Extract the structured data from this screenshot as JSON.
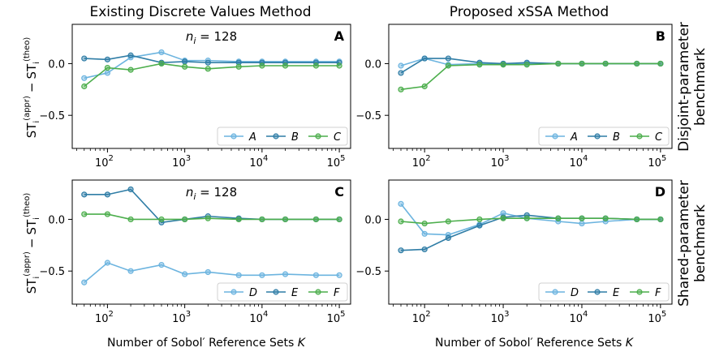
{
  "figure": {
    "col_titles": [
      "Existing Discrete Values Method",
      "Proposed xSSA Method"
    ],
    "row_labels": [
      [
        "Disjoint-parameter",
        "benchmark"
      ],
      [
        "Shared-parameter",
        "benchmark"
      ]
    ],
    "xlabel_prefix": "Number of Sobol′ Reference Sets ",
    "xlabel_var": "K",
    "ylabel": {
      "prefix": "ST",
      "sub": "i",
      "sup_appr": "(appr)",
      "minus": "−",
      "sup_theo": "(theo)"
    }
  },
  "chart_data": [
    {
      "type": "line",
      "panel": "A",
      "annotation": "n_i = 128",
      "x": [
        50,
        100,
        200,
        500,
        1000,
        2000,
        5000,
        10000,
        20000,
        50000,
        100000
      ],
      "xscale": "log",
      "xlim": [
        35,
        140000
      ],
      "ylim": [
        -0.82,
        0.38
      ],
      "yticks": [
        0.0,
        -0.5
      ],
      "xticks": [
        100,
        1000,
        10000,
        100000
      ],
      "legend_position": "lower-right",
      "series": [
        {
          "name": "A",
          "color": "#6cb4df",
          "values": [
            -0.14,
            -0.09,
            0.06,
            0.11,
            0.03,
            0.03,
            0.02,
            0.02,
            0.02,
            0.02,
            0.02
          ]
        },
        {
          "name": "B",
          "color": "#2f7da6",
          "values": [
            0.05,
            0.04,
            0.08,
            0.01,
            0.02,
            0.01,
            0.01,
            0.01,
            0.01,
            0.01,
            0.01
          ]
        },
        {
          "name": "C",
          "color": "#4cae4c",
          "values": [
            -0.22,
            -0.04,
            -0.06,
            0.0,
            -0.03,
            -0.05,
            -0.03,
            -0.02,
            -0.02,
            -0.02,
            -0.02
          ]
        }
      ]
    },
    {
      "type": "line",
      "panel": "B",
      "annotation": "",
      "x": [
        50,
        100,
        200,
        500,
        1000,
        2000,
        5000,
        10000,
        20000,
        50000,
        100000
      ],
      "xscale": "log",
      "xlim": [
        35,
        140000
      ],
      "ylim": [
        -0.82,
        0.38
      ],
      "yticks": [
        0.0,
        -0.5
      ],
      "xticks": [
        100,
        1000,
        10000,
        100000
      ],
      "legend_position": "lower-right",
      "series": [
        {
          "name": "A",
          "color": "#6cb4df",
          "values": [
            -0.02,
            0.05,
            -0.01,
            0.0,
            0.0,
            0.0,
            0.0,
            0.0,
            0.0,
            0.0,
            0.0
          ]
        },
        {
          "name": "B",
          "color": "#2f7da6",
          "values": [
            -0.09,
            0.05,
            0.05,
            0.01,
            0.0,
            0.01,
            0.0,
            0.0,
            0.0,
            0.0,
            0.0
          ]
        },
        {
          "name": "C",
          "color": "#4cae4c",
          "values": [
            -0.25,
            -0.22,
            -0.02,
            -0.01,
            -0.01,
            -0.01,
            0.0,
            0.0,
            0.0,
            0.0,
            0.0
          ]
        }
      ]
    },
    {
      "type": "line",
      "panel": "C",
      "annotation": "n_i = 128",
      "x": [
        50,
        100,
        200,
        500,
        1000,
        2000,
        5000,
        10000,
        20000,
        50000,
        100000
      ],
      "xscale": "log",
      "xlim": [
        35,
        140000
      ],
      "ylim": [
        -0.82,
        0.38
      ],
      "yticks": [
        0.0,
        -0.5
      ],
      "xticks": [
        100,
        1000,
        10000,
        100000
      ],
      "legend_position": "lower-right",
      "series": [
        {
          "name": "D",
          "color": "#6cb4df",
          "values": [
            -0.61,
            -0.42,
            -0.5,
            -0.44,
            -0.53,
            -0.51,
            -0.54,
            -0.54,
            -0.53,
            -0.54,
            -0.54
          ]
        },
        {
          "name": "E",
          "color": "#2f7da6",
          "values": [
            0.24,
            0.24,
            0.29,
            -0.03,
            0.0,
            0.03,
            0.01,
            0.0,
            0.0,
            0.0,
            0.0
          ]
        },
        {
          "name": "F",
          "color": "#4cae4c",
          "values": [
            0.05,
            0.05,
            0.0,
            0.0,
            0.0,
            0.01,
            0.0,
            0.0,
            0.0,
            0.0,
            0.0
          ]
        }
      ]
    },
    {
      "type": "line",
      "panel": "D",
      "annotation": "",
      "x": [
        50,
        100,
        200,
        500,
        1000,
        2000,
        5000,
        10000,
        20000,
        50000,
        100000
      ],
      "xscale": "log",
      "xlim": [
        35,
        140000
      ],
      "ylim": [
        -0.82,
        0.38
      ],
      "yticks": [
        0.0,
        -0.5
      ],
      "xticks": [
        100,
        1000,
        10000,
        100000
      ],
      "legend_position": "lower-right",
      "series": [
        {
          "name": "D",
          "color": "#6cb4df",
          "values": [
            0.15,
            -0.14,
            -0.15,
            -0.05,
            0.06,
            0.01,
            -0.02,
            -0.04,
            -0.02,
            0.0,
            0.0
          ]
        },
        {
          "name": "E",
          "color": "#2f7da6",
          "values": [
            -0.3,
            -0.29,
            -0.18,
            -0.06,
            0.02,
            0.04,
            0.01,
            0.01,
            0.01,
            0.0,
            0.0
          ]
        },
        {
          "name": "F",
          "color": "#4cae4c",
          "values": [
            -0.02,
            -0.04,
            -0.02,
            0.0,
            0.01,
            0.01,
            0.01,
            0.01,
            0.01,
            0.0,
            0.0
          ]
        }
      ]
    }
  ]
}
